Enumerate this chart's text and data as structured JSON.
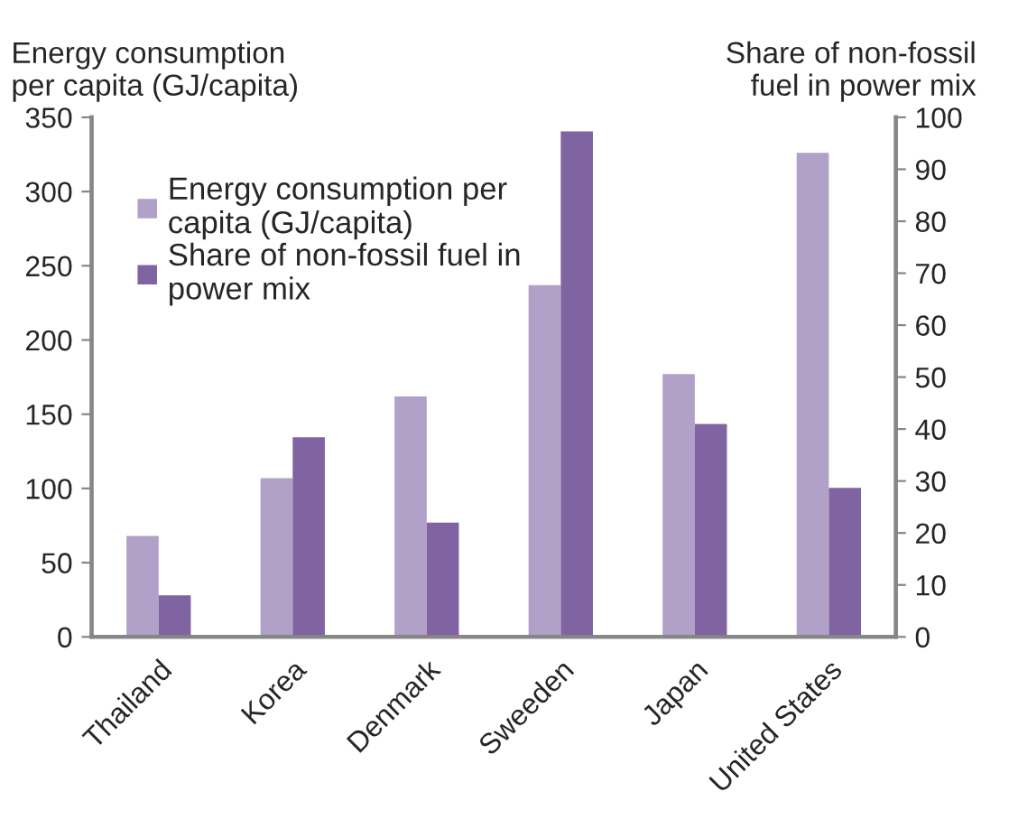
{
  "chart_data": {
    "type": "bar",
    "ylabel": "Energy consumption\nper capita (GJ/capita)",
    "y2label": "Share of non-fossil\nfuel in power mix",
    "categories": [
      "Thailand",
      "Korea",
      "Denmark",
      "Sweeden",
      "Japan",
      "United States"
    ],
    "series": [
      {
        "name": "Energy consumption per\ncapita (GJ/capita)",
        "color": "#b1a0c7",
        "values": [
          68,
          107,
          162,
          237,
          177,
          326
        ]
      },
      {
        "name": "Share of non-fossil fuel in\npower mix",
        "color": "#8064a2",
        "values": [
          8,
          38.4,
          22,
          97.3,
          41,
          28.7
        ],
        "axis": "y2"
      }
    ],
    "ylim": [
      0,
      350
    ],
    "yticks": [
      0,
      50,
      100,
      150,
      200,
      250,
      300,
      350
    ],
    "y2lim": [
      0,
      100
    ],
    "y2ticks": [
      0,
      10,
      20,
      30,
      40,
      50,
      60,
      70,
      80,
      90,
      100
    ],
    "grid": false,
    "legend": "top left"
  }
}
